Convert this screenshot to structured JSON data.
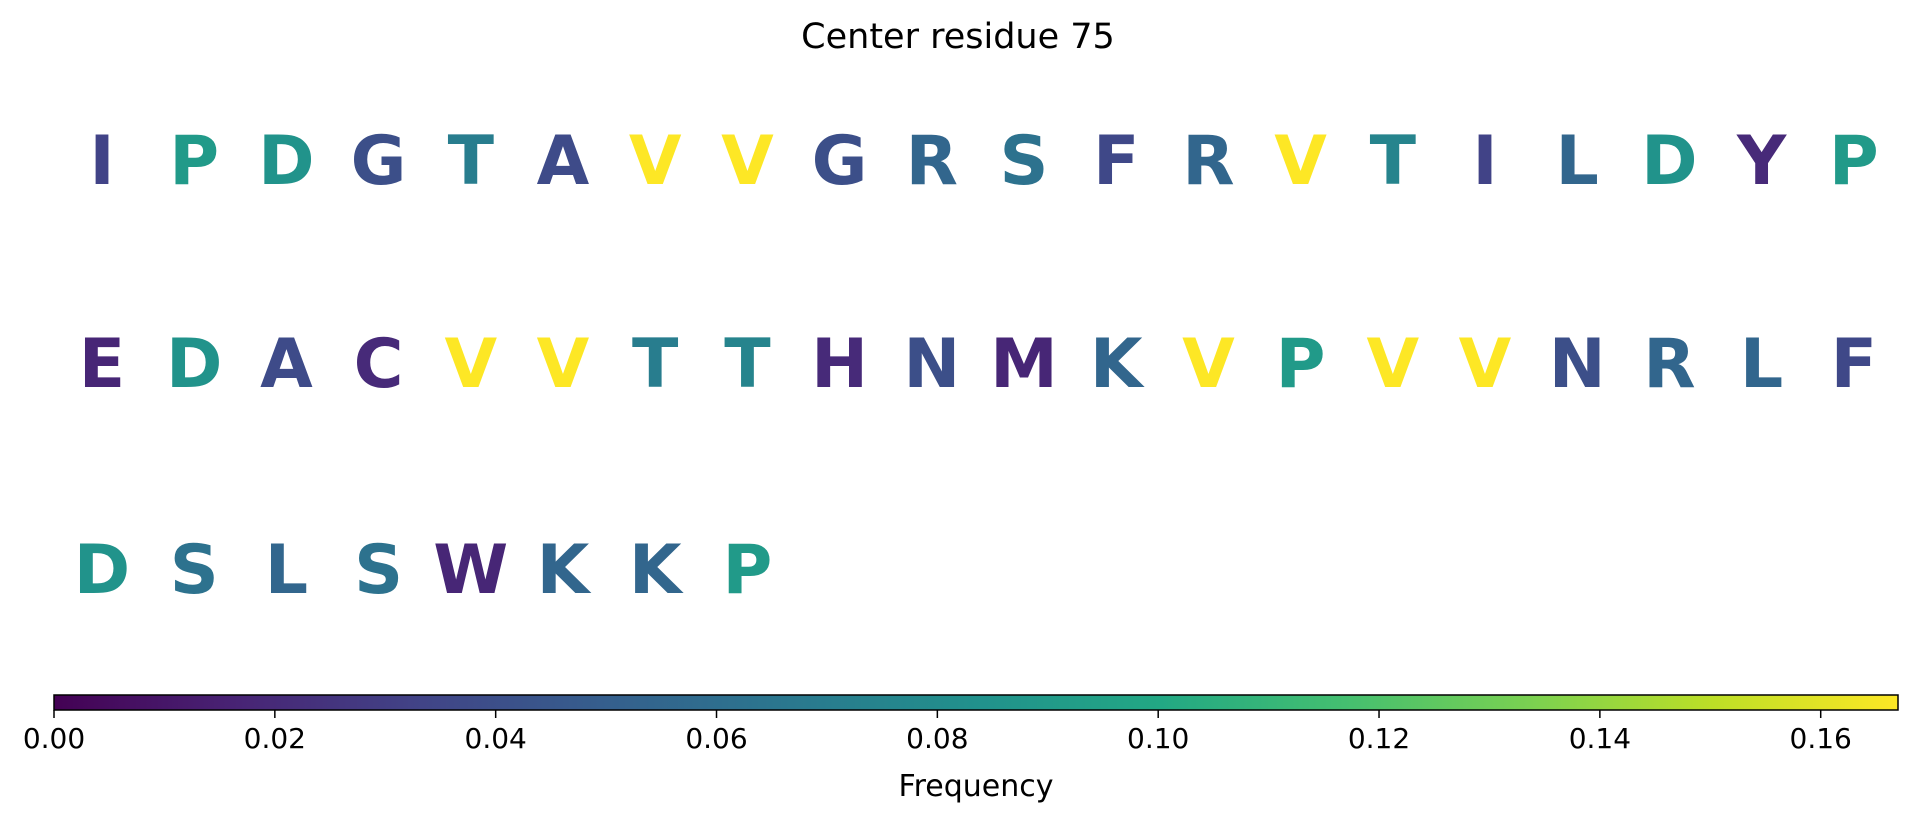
{
  "chart_data": {
    "type": "sequence-frequency",
    "title": "Center residue 75",
    "rows": [
      {
        "residues": [
          "I",
          "P",
          "D",
          "G",
          "T",
          "A",
          "V",
          "V",
          "G",
          "R",
          "S",
          "F",
          "R",
          "V",
          "T",
          "I",
          "L",
          "D",
          "Y",
          "P"
        ],
        "frequencies": [
          0.033,
          0.09,
          0.085,
          0.04,
          0.07,
          0.038,
          0.167,
          0.167,
          0.04,
          0.055,
          0.063,
          0.036,
          0.055,
          0.167,
          0.075,
          0.033,
          0.055,
          0.085,
          0.02,
          0.09
        ]
      },
      {
        "residues": [
          "E",
          "D",
          "A",
          "C",
          "V",
          "V",
          "T",
          "T",
          "H",
          "N",
          "M",
          "K",
          "V",
          "P",
          "V",
          "V",
          "N",
          "R",
          "L",
          "F"
        ],
        "frequencies": [
          0.018,
          0.085,
          0.038,
          0.02,
          0.167,
          0.167,
          0.07,
          0.075,
          0.02,
          0.04,
          0.018,
          0.055,
          0.167,
          0.09,
          0.167,
          0.167,
          0.04,
          0.055,
          0.055,
          0.036
        ]
      },
      {
        "residues": [
          "D",
          "S",
          "L",
          "S",
          "W",
          "K",
          "K",
          "P"
        ],
        "frequencies": [
          0.085,
          0.063,
          0.055,
          0.063,
          0.018,
          0.055,
          0.055,
          0.09
        ]
      }
    ],
    "colorbar": {
      "colormap": "viridis",
      "range": [
        0,
        0.167
      ],
      "ticks": [
        0.0,
        0.02,
        0.04,
        0.06,
        0.08,
        0.1,
        0.12,
        0.14,
        0.16
      ],
      "tick_labels": [
        "0.00",
        "0.02",
        "0.04",
        "0.06",
        "0.08",
        "0.10",
        "0.12",
        "0.14",
        "0.16"
      ],
      "label": "Frequency"
    }
  }
}
